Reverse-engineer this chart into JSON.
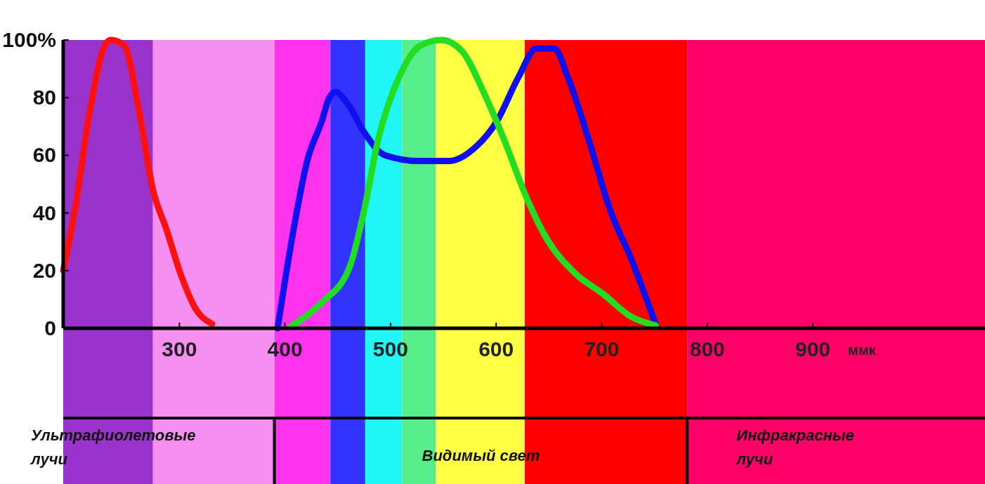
{
  "chart_data": {
    "type": "line",
    "xlabel": "ммк",
    "xlim": [
      190,
      1063
    ],
    "xticks": [
      300,
      400,
      500,
      600,
      700,
      800,
      900
    ],
    "ylim": [
      0,
      100
    ],
    "yticks": [
      0,
      20,
      40,
      60,
      80,
      {
        "value": 100,
        "label": "100%"
      }
    ],
    "grid": false,
    "marker": "none",
    "line_style": "solid",
    "annotations": [
      "Ультрафиолетовые лучи",
      "Видимый свет",
      "Инфракрасные лучи"
    ],
    "bands": [
      {
        "axis": "x",
        "from": 190,
        "to": 275,
        "color": "#9933cc"
      },
      {
        "axis": "x",
        "from": 275,
        "to": 390,
        "color": "#f590f0"
      },
      {
        "axis": "x",
        "from": 390,
        "to": 443,
        "color": "#ff33ee"
      },
      {
        "axis": "x",
        "from": 443,
        "to": 476,
        "color": "#3333ff"
      },
      {
        "axis": "x",
        "from": 476,
        "to": 511,
        "color": "#22f5f5"
      },
      {
        "axis": "x",
        "from": 511,
        "to": 543,
        "color": "#55ee88"
      },
      {
        "axis": "x",
        "from": 543,
        "to": 627,
        "color": "#ffff44"
      },
      {
        "axis": "x",
        "from": 627,
        "to": 781,
        "color": "#ff0000"
      },
      {
        "axis": "x",
        "from": 781,
        "to": 1063,
        "color": "#ff0066"
      }
    ],
    "series": [
      {
        "color": "#ff1010",
        "x": [
          190,
          201,
          215,
          228,
          235,
          248,
          261,
          275,
          288,
          301,
          315,
          331
        ],
        "values": [
          20,
          41,
          75,
          97,
          100,
          98,
          77,
          48,
          34,
          19,
          7,
          1.5
        ]
      },
      {
        "color": "#1010ee",
        "x": [
          393,
          408,
          421,
          435,
          442,
          448,
          455,
          461,
          475,
          495,
          528,
          555,
          581,
          601,
          621,
          638,
          655,
          668,
          688,
          708,
          728,
          751
        ],
        "values": [
          0,
          34,
          58,
          72,
          80,
          82,
          80,
          77,
          68,
          60,
          58,
          58,
          63,
          72,
          87,
          97,
          97,
          87,
          65,
          41,
          24,
          1.5
        ]
      },
      {
        "color": "#22dd22",
        "x": [
          405,
          435,
          461,
          475,
          488,
          508,
          528,
          548,
          568,
          588,
          608,
          628,
          648,
          675,
          701,
          728,
          751
        ],
        "values": [
          0.5,
          9,
          21,
          41,
          65,
          87,
          98,
          100,
          96,
          82,
          65,
          46,
          31,
          19,
          12,
          4,
          1
        ]
      }
    ]
  }
}
